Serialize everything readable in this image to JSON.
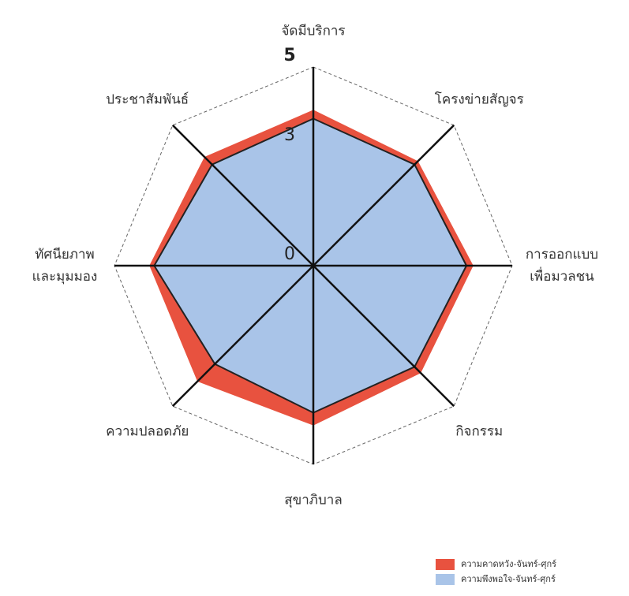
{
  "chart_data": {
    "type": "radar",
    "categories": [
      [
        "จัดมีบริการ"
      ],
      [
        "โครงข่ายสัญจร"
      ],
      [
        "การออกแบบ",
        "เพื่อมวลชน"
      ],
      [
        "กิจกรรม"
      ],
      [
        "สุขาภิบาล"
      ],
      [
        "ความปลอดภัย"
      ],
      [
        "ทัศนียภาพ",
        "และมุมมอง"
      ],
      [
        "ประชาสัมพันธ์"
      ]
    ],
    "series": [
      {
        "name": "ความคาดหวัง-จันทร์-ศุกร์",
        "color": "#e8523f",
        "values": [
          3.9,
          3.7,
          4.0,
          3.8,
          4.0,
          4.1,
          4.1,
          3.85
        ]
      },
      {
        "name": "ความพึงพอใจ-จันทร์-ศุกร์",
        "color": "#a9c4e8",
        "values": [
          3.7,
          3.6,
          3.85,
          3.6,
          3.7,
          3.5,
          4.0,
          3.6
        ]
      }
    ],
    "rlim": [
      0,
      5
    ],
    "rticks": [
      0,
      3,
      5
    ],
    "grid": true,
    "legend": "lower right"
  }
}
